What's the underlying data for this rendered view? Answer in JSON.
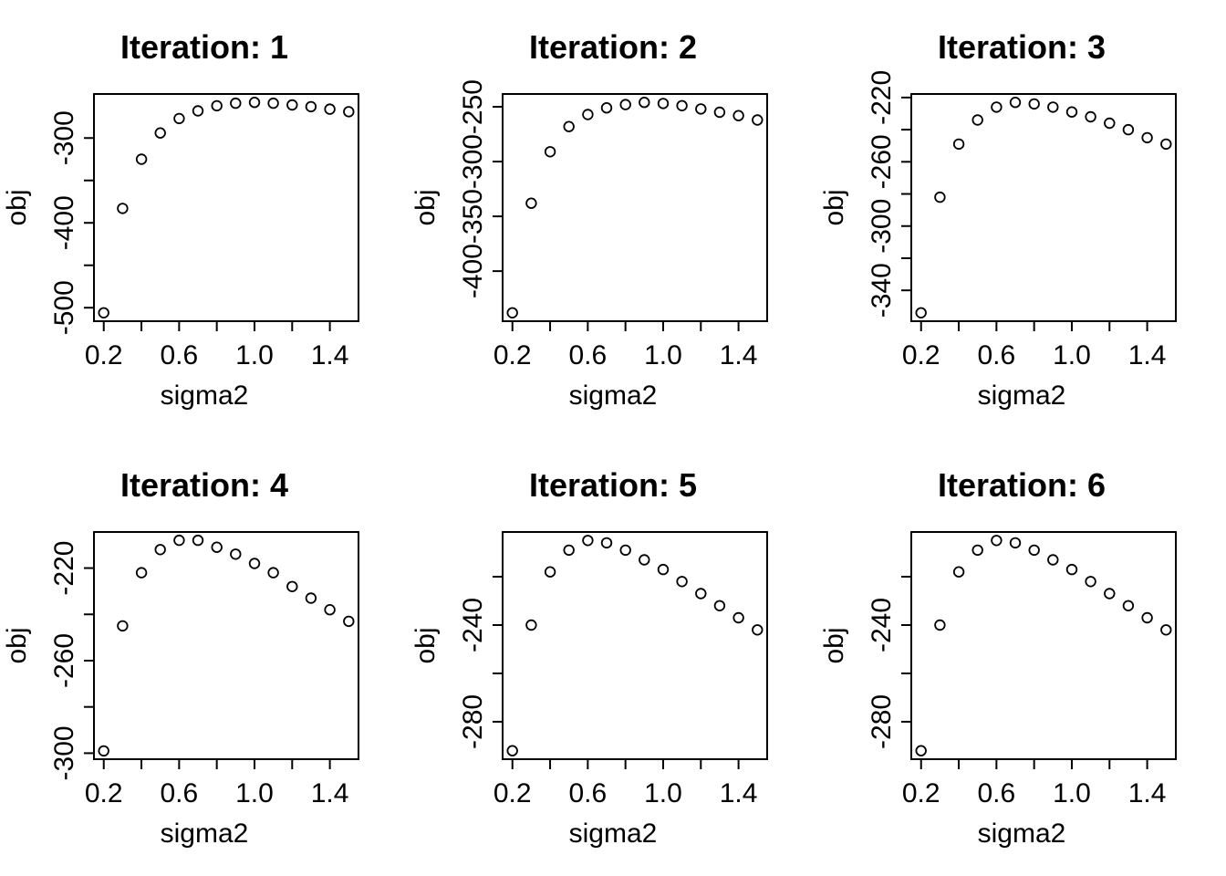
{
  "page": {
    "background_color": "#ffffff",
    "foreground_color": "#000000"
  },
  "chart_data": [
    {
      "type": "scatter",
      "title": "Iteration: 1",
      "xlabel": "sigma2",
      "ylabel": "obj",
      "marker": "open-circle",
      "grid": false,
      "x": [
        0.2,
        0.3,
        0.4,
        0.5,
        0.6,
        0.7,
        0.8,
        0.9,
        1.0,
        1.1,
        1.2,
        1.3,
        1.4,
        1.5
      ],
      "y": [
        -506,
        -383,
        -325,
        -294,
        -277,
        -268,
        -262,
        -259,
        -258,
        -259,
        -261,
        -263,
        -266,
        -269
      ],
      "xlim": [
        0.148,
        1.552
      ],
      "ylim": [
        -515.9,
        -248.1
      ],
      "xticks": [
        {
          "value": 0.2,
          "label": "0.2"
        },
        {
          "value": 0.4,
          "label": null
        },
        {
          "value": 0.6,
          "label": "0.6"
        },
        {
          "value": 0.8,
          "label": null
        },
        {
          "value": 1.0,
          "label": "1.0"
        },
        {
          "value": 1.2,
          "label": null
        },
        {
          "value": 1.4,
          "label": "1.4"
        }
      ],
      "yticks": [
        {
          "value": -500,
          "label": "-500"
        },
        {
          "value": -450,
          "label": null
        },
        {
          "value": -400,
          "label": "-400"
        },
        {
          "value": -350,
          "label": null
        },
        {
          "value": -300,
          "label": "-300"
        }
      ]
    },
    {
      "type": "scatter",
      "title": "Iteration: 2",
      "xlabel": "sigma2",
      "ylabel": "obj",
      "marker": "open-circle",
      "grid": false,
      "x": [
        0.2,
        0.3,
        0.4,
        0.5,
        0.6,
        0.7,
        0.8,
        0.9,
        1.0,
        1.1,
        1.2,
        1.3,
        1.4,
        1.5
      ],
      "y": [
        -438,
        -338,
        -291,
        -268,
        -257,
        -251,
        -248,
        -246,
        -247,
        -249,
        -252,
        -255,
        -258,
        -262
      ],
      "xlim": [
        0.148,
        1.552
      ],
      "ylim": [
        -445.7,
        -238.3
      ],
      "xticks": [
        {
          "value": 0.2,
          "label": "0.2"
        },
        {
          "value": 0.4,
          "label": null
        },
        {
          "value": 0.6,
          "label": "0.6"
        },
        {
          "value": 0.8,
          "label": null
        },
        {
          "value": 1.0,
          "label": "1.0"
        },
        {
          "value": 1.2,
          "label": null
        },
        {
          "value": 1.4,
          "label": "1.4"
        }
      ],
      "yticks": [
        {
          "value": -400,
          "label": "-400"
        },
        {
          "value": -350,
          "label": "-350"
        },
        {
          "value": -300,
          "label": "-300"
        },
        {
          "value": -250,
          "label": "-250"
        }
      ]
    },
    {
      "type": "scatter",
      "title": "Iteration: 3",
      "xlabel": "sigma2",
      "ylabel": "obj",
      "marker": "open-circle",
      "grid": false,
      "x": [
        0.2,
        0.3,
        0.4,
        0.5,
        0.6,
        0.7,
        0.8,
        0.9,
        1.0,
        1.1,
        1.2,
        1.3,
        1.4,
        1.5
      ],
      "y": [
        -354,
        -282,
        -249,
        -234,
        -226,
        -223,
        -224,
        -226,
        -229,
        -232,
        -236,
        -240,
        -245,
        -249
      ],
      "xlim": [
        0.148,
        1.552
      ],
      "ylim": [
        -359.2,
        -217.8
      ],
      "xticks": [
        {
          "value": 0.2,
          "label": "0.2"
        },
        {
          "value": 0.4,
          "label": null
        },
        {
          "value": 0.6,
          "label": "0.6"
        },
        {
          "value": 0.8,
          "label": null
        },
        {
          "value": 1.0,
          "label": "1.0"
        },
        {
          "value": 1.2,
          "label": null
        },
        {
          "value": 1.4,
          "label": "1.4"
        }
      ],
      "yticks": [
        {
          "value": -340,
          "label": "-340"
        },
        {
          "value": -320,
          "label": null
        },
        {
          "value": -300,
          "label": "-300"
        },
        {
          "value": -280,
          "label": null
        },
        {
          "value": -260,
          "label": "-260"
        },
        {
          "value": -240,
          "label": null
        },
        {
          "value": -220,
          "label": "-220"
        }
      ]
    },
    {
      "type": "scatter",
      "title": "Iteration: 4",
      "xlabel": "sigma2",
      "ylabel": "obj",
      "marker": "open-circle",
      "grid": false,
      "x": [
        0.2,
        0.3,
        0.4,
        0.5,
        0.6,
        0.7,
        0.8,
        0.9,
        1.0,
        1.1,
        1.2,
        1.3,
        1.4,
        1.5
      ],
      "y": [
        -299,
        -245,
        -222,
        -212,
        -208,
        -208,
        -211,
        -214,
        -218,
        -222,
        -228,
        -233,
        -238,
        -243
      ],
      "xlim": [
        0.148,
        1.552
      ],
      "ylim": [
        -302.6,
        -204.4
      ],
      "xticks": [
        {
          "value": 0.2,
          "label": "0.2"
        },
        {
          "value": 0.4,
          "label": null
        },
        {
          "value": 0.6,
          "label": "0.6"
        },
        {
          "value": 0.8,
          "label": null
        },
        {
          "value": 1.0,
          "label": "1.0"
        },
        {
          "value": 1.2,
          "label": null
        },
        {
          "value": 1.4,
          "label": "1.4"
        }
      ],
      "yticks": [
        {
          "value": -300,
          "label": "-300"
        },
        {
          "value": -280,
          "label": null
        },
        {
          "value": -260,
          "label": "-260"
        },
        {
          "value": -240,
          "label": null
        },
        {
          "value": -220,
          "label": "-220"
        }
      ]
    },
    {
      "type": "scatter",
      "title": "Iteration: 5",
      "xlabel": "sigma2",
      "ylabel": "obj",
      "marker": "open-circle",
      "grid": false,
      "x": [
        0.2,
        0.3,
        0.4,
        0.5,
        0.6,
        0.7,
        0.8,
        0.9,
        1.0,
        1.1,
        1.2,
        1.3,
        1.4,
        1.5
      ],
      "y": [
        -292,
        -240,
        -218,
        -209,
        -205,
        -206,
        -209,
        -213,
        -217,
        -222,
        -227,
        -232,
        -237,
        -242
      ],
      "xlim": [
        0.148,
        1.552
      ],
      "ylim": [
        -295.5,
        -201.5
      ],
      "xticks": [
        {
          "value": 0.2,
          "label": "0.2"
        },
        {
          "value": 0.4,
          "label": null
        },
        {
          "value": 0.6,
          "label": "0.6"
        },
        {
          "value": 0.8,
          "label": null
        },
        {
          "value": 1.0,
          "label": "1.0"
        },
        {
          "value": 1.2,
          "label": null
        },
        {
          "value": 1.4,
          "label": "1.4"
        }
      ],
      "yticks": [
        {
          "value": -280,
          "label": "-280"
        },
        {
          "value": -260,
          "label": null
        },
        {
          "value": -240,
          "label": "-240"
        },
        {
          "value": -220,
          "label": null
        }
      ]
    },
    {
      "type": "scatter",
      "title": "Iteration: 6",
      "xlabel": "sigma2",
      "ylabel": "obj",
      "marker": "open-circle",
      "grid": false,
      "x": [
        0.2,
        0.3,
        0.4,
        0.5,
        0.6,
        0.7,
        0.8,
        0.9,
        1.0,
        1.1,
        1.2,
        1.3,
        1.4,
        1.5
      ],
      "y": [
        -292,
        -240,
        -218,
        -209,
        -205,
        -206,
        -209,
        -213,
        -217,
        -222,
        -227,
        -232,
        -237,
        -242
      ],
      "xlim": [
        0.148,
        1.552
      ],
      "ylim": [
        -295.5,
        -201.5
      ],
      "xticks": [
        {
          "value": 0.2,
          "label": "0.2"
        },
        {
          "value": 0.4,
          "label": null
        },
        {
          "value": 0.6,
          "label": "0.6"
        },
        {
          "value": 0.8,
          "label": null
        },
        {
          "value": 1.0,
          "label": "1.0"
        },
        {
          "value": 1.2,
          "label": null
        },
        {
          "value": 1.4,
          "label": "1.4"
        }
      ],
      "yticks": [
        {
          "value": -280,
          "label": "-280"
        },
        {
          "value": -260,
          "label": null
        },
        {
          "value": -240,
          "label": "-240"
        },
        {
          "value": -220,
          "label": null
        }
      ]
    }
  ]
}
